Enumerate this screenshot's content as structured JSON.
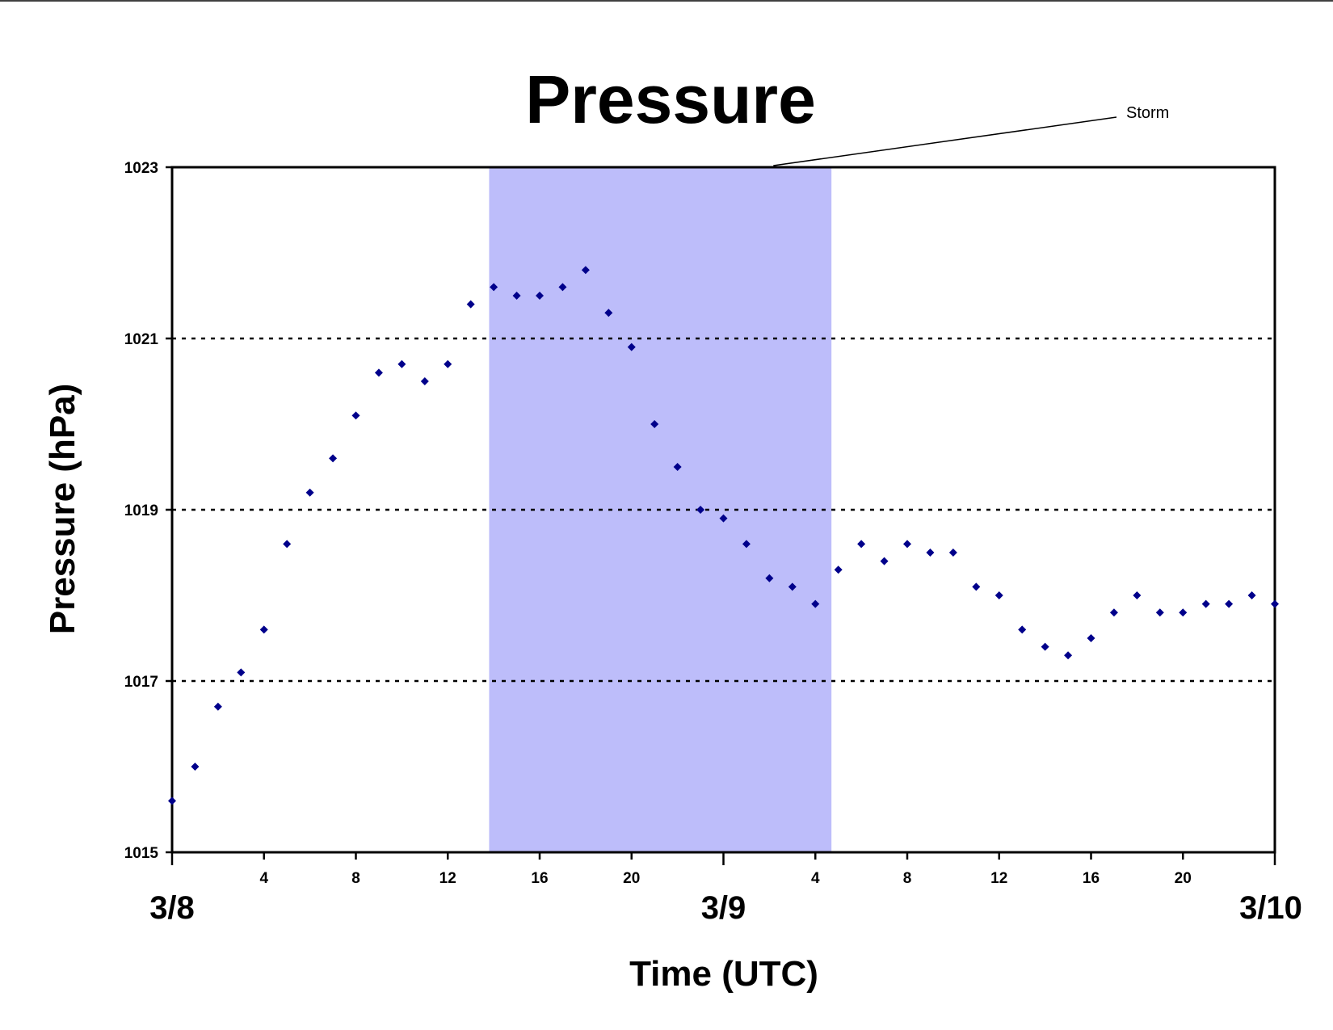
{
  "chart_data": {
    "type": "scatter",
    "title": "Pressure",
    "xlabel": "Time (UTC)",
    "ylabel": "Pressure (hPa)",
    "ylim": [
      1015,
      1023
    ],
    "yticks": [
      "1015",
      "1017",
      "1019",
      "1021",
      "1023"
    ],
    "gridlines_y": [
      1017,
      1019,
      1021
    ],
    "grid": "horizontal dotted",
    "xlim_hours": [
      0,
      48
    ],
    "xticks": [
      {
        "hour": 4,
        "label": "4"
      },
      {
        "hour": 8,
        "label": "8"
      },
      {
        "hour": 12,
        "label": "12"
      },
      {
        "hour": 16,
        "label": "16"
      },
      {
        "hour": 20,
        "label": "20"
      },
      {
        "hour": 28,
        "label": "4"
      },
      {
        "hour": 32,
        "label": "8"
      },
      {
        "hour": 36,
        "label": "12"
      },
      {
        "hour": 40,
        "label": "16"
      },
      {
        "hour": 44,
        "label": "20"
      }
    ],
    "day_labels": [
      {
        "hour": 0,
        "label": "3/8"
      },
      {
        "hour": 24,
        "label": "3/9"
      },
      {
        "hour": 48,
        "label": "3/10"
      }
    ],
    "annotation": {
      "text": "Storm",
      "start_hour": 13.8,
      "end_hour": 28.7,
      "color": "#bdbdfa"
    },
    "marker_color": "#00008b",
    "points": [
      {
        "x": 0,
        "y": 1015.6
      },
      {
        "x": 1,
        "y": 1016.0
      },
      {
        "x": 2,
        "y": 1016.7
      },
      {
        "x": 3,
        "y": 1017.1
      },
      {
        "x": 4,
        "y": 1017.6
      },
      {
        "x": 5,
        "y": 1018.6
      },
      {
        "x": 6,
        "y": 1019.2
      },
      {
        "x": 7,
        "y": 1019.6
      },
      {
        "x": 8,
        "y": 1020.1
      },
      {
        "x": 9,
        "y": 1020.6
      },
      {
        "x": 10,
        "y": 1020.7
      },
      {
        "x": 11,
        "y": 1020.5
      },
      {
        "x": 12,
        "y": 1020.7
      },
      {
        "x": 13,
        "y": 1021.4
      },
      {
        "x": 14,
        "y": 1021.6
      },
      {
        "x": 15,
        "y": 1021.5
      },
      {
        "x": 16,
        "y": 1021.5
      },
      {
        "x": 17,
        "y": 1021.6
      },
      {
        "x": 18,
        "y": 1021.8
      },
      {
        "x": 19,
        "y": 1021.3
      },
      {
        "x": 20,
        "y": 1020.9
      },
      {
        "x": 21,
        "y": 1020.0
      },
      {
        "x": 22,
        "y": 1019.5
      },
      {
        "x": 23,
        "y": 1019.0
      },
      {
        "x": 24,
        "y": 1018.9
      },
      {
        "x": 25,
        "y": 1018.6
      },
      {
        "x": 26,
        "y": 1018.2
      },
      {
        "x": 27,
        "y": 1018.1
      },
      {
        "x": 28,
        "y": 1017.9
      },
      {
        "x": 29,
        "y": 1018.3
      },
      {
        "x": 30,
        "y": 1018.6
      },
      {
        "x": 31,
        "y": 1018.4
      },
      {
        "x": 32,
        "y": 1018.6
      },
      {
        "x": 33,
        "y": 1018.5
      },
      {
        "x": 34,
        "y": 1018.5
      },
      {
        "x": 35,
        "y": 1018.1
      },
      {
        "x": 36,
        "y": 1018.0
      },
      {
        "x": 37,
        "y": 1017.6
      },
      {
        "x": 38,
        "y": 1017.4
      },
      {
        "x": 39,
        "y": 1017.3
      },
      {
        "x": 40,
        "y": 1017.5
      },
      {
        "x": 41,
        "y": 1017.8
      },
      {
        "x": 42,
        "y": 1018.0
      },
      {
        "x": 43,
        "y": 1017.8
      },
      {
        "x": 44,
        "y": 1017.8
      },
      {
        "x": 45,
        "y": 1017.9
      },
      {
        "x": 46,
        "y": 1017.9
      },
      {
        "x": 47,
        "y": 1018.0
      },
      {
        "x": 48,
        "y": 1017.9
      }
    ]
  }
}
